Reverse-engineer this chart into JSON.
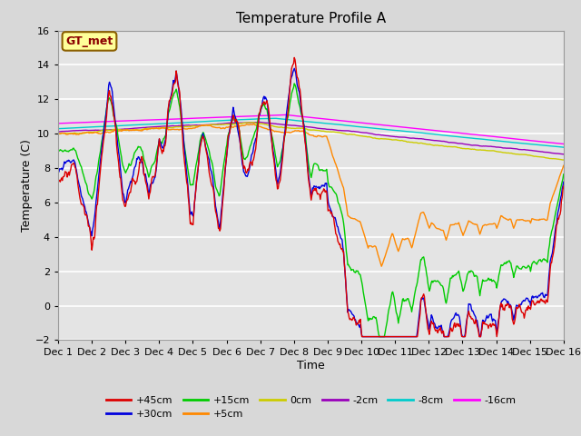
{
  "title": "Temperature Profile A",
  "xlabel": "Time",
  "ylabel": "Temperature (C)",
  "ylim": [
    -2,
    16
  ],
  "yticks": [
    -2,
    0,
    2,
    4,
    6,
    8,
    10,
    12,
    14,
    16
  ],
  "xtick_labels": [
    "Dec 1",
    "Dec 2",
    "Dec 3",
    "Dec 4",
    "Dec 5",
    "Dec 6",
    "Dec 7",
    "Dec 8",
    "Dec 9",
    "Dec 10",
    "Dec 11",
    "Dec 12",
    "Dec 13",
    "Dec 14",
    "Dec 15",
    "Dec 16"
  ],
  "n_days": 15,
  "pts_per_day": 48,
  "annotation_text": "GT_met",
  "annotation_color": "#8B0000",
  "annotation_bg": "#FFFF99",
  "annotation_border": "#8B6000",
  "fig_bg": "#D8D8D8",
  "plot_bg": "#E4E4E4",
  "series_colors": {
    "+45cm": "#DD0000",
    "+30cm": "#0000DD",
    "+15cm": "#00CC00",
    "+5cm": "#FF8800",
    "0cm": "#CCCC00",
    "-2cm": "#9900BB",
    "-8cm": "#00CCCC",
    "-16cm": "#FF00FF"
  },
  "series_order": [
    "-16cm",
    "-8cm",
    "-2cm",
    "0cm",
    "+5cm",
    "+15cm",
    "+30cm",
    "+45cm"
  ],
  "legend_order": [
    "+45cm",
    "+30cm",
    "+15cm",
    "+5cm",
    "0cm",
    "-2cm",
    "-8cm",
    "-16cm"
  ],
  "title_fontsize": 11,
  "axis_label_fontsize": 9,
  "tick_fontsize": 8,
  "legend_fontsize": 8
}
